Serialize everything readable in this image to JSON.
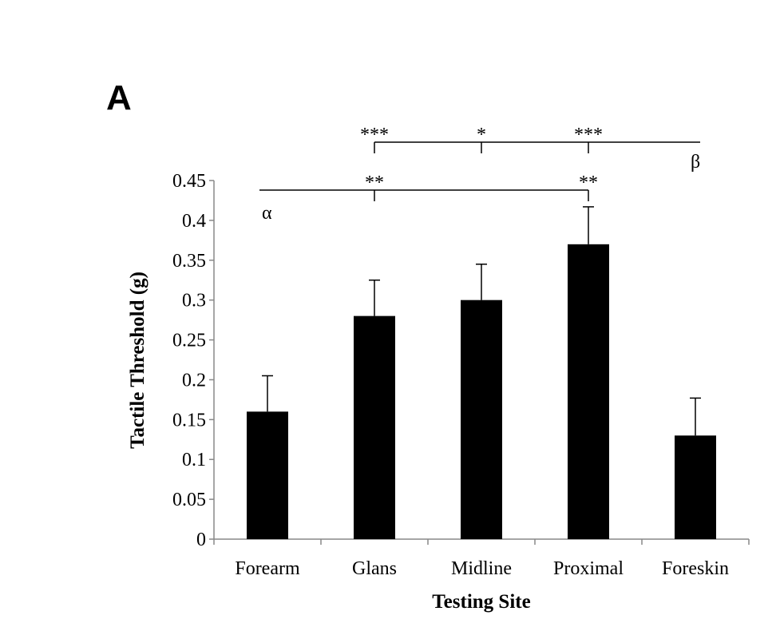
{
  "panel_label": "A",
  "chart_data": {
    "type": "bar",
    "title": "",
    "xlabel": "Testing Site",
    "ylabel": "Tactile Threshold (g)",
    "categories": [
      "Forearm",
      "Glans",
      "Midline",
      "Proximal",
      "Foreskin"
    ],
    "values": [
      0.16,
      0.28,
      0.3,
      0.37,
      0.13
    ],
    "error_plus": [
      0.045,
      0.045,
      0.045,
      0.047,
      0.047
    ],
    "ylim": [
      0,
      0.45
    ],
    "yticks": [
      "0",
      "0.05",
      "0.1",
      "0.15",
      "0.2",
      "0.25",
      "0.3",
      "0.35",
      "0.4",
      "0.45"
    ],
    "grid": false,
    "bar_color": "#000000",
    "annotations": {
      "alpha": {
        "symbol": "α",
        "reference": "Forearm",
        "marks": [
          {
            "category": "Glans",
            "label": "**"
          },
          {
            "category": "Proximal",
            "label": "**"
          }
        ]
      },
      "beta": {
        "symbol": "β",
        "reference": "Foreskin",
        "marks": [
          {
            "category": "Glans",
            "label": "***"
          },
          {
            "category": "Midline",
            "label": "*"
          },
          {
            "category": "Proximal",
            "label": "***"
          }
        ]
      }
    }
  }
}
